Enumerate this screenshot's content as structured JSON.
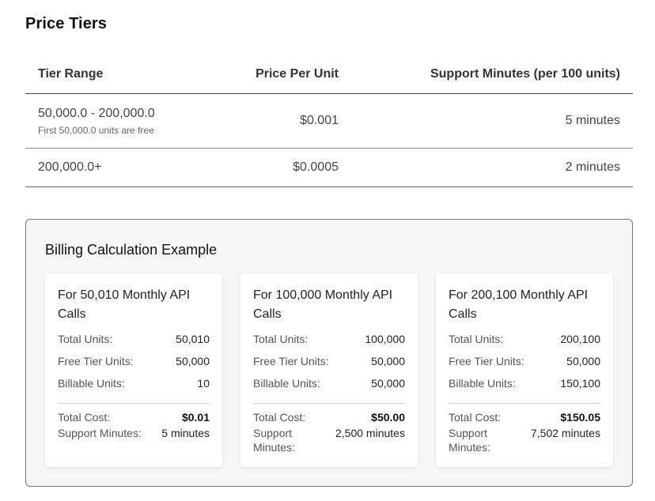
{
  "price_tiers": {
    "title": "Price Tiers",
    "headers": {
      "tier_range": "Tier Range",
      "price_per_unit": "Price Per Unit",
      "support_minutes": "Support Minutes (per 100 units)"
    },
    "rows": [
      {
        "range": "50,000.0 - 200,000.0",
        "note": "First 50,000.0 units are free",
        "price": "$0.001",
        "minutes": "5 minutes"
      },
      {
        "range": "200,000.0+",
        "note": "",
        "price": "$0.0005",
        "minutes": "2 minutes"
      }
    ]
  },
  "billing": {
    "title": "Billing Calculation Example",
    "labels": {
      "total_units": "Total Units:",
      "free_units": "Free Tier Units:",
      "billable_units": "Billable Units:",
      "total_cost": "Total Cost:",
      "support_minutes": "Support Minutes:"
    },
    "cards": [
      {
        "title": "For 50,010 Monthly API Calls",
        "total_units": "50,010",
        "free_units": "50,000",
        "billable_units": "10",
        "total_cost": "$0.01",
        "support_minutes": "5 minutes"
      },
      {
        "title": "For 100,000 Monthly API Calls",
        "total_units": "100,000",
        "free_units": "50,000",
        "billable_units": "50,000",
        "total_cost": "$50.00",
        "support_minutes": "2,500 minutes"
      },
      {
        "title": "For 200,100 Monthly API Calls",
        "total_units": "200,100",
        "free_units": "50,000",
        "billable_units": "150,100",
        "total_cost": "$150.05",
        "support_minutes": "7,502 minutes"
      }
    ]
  }
}
